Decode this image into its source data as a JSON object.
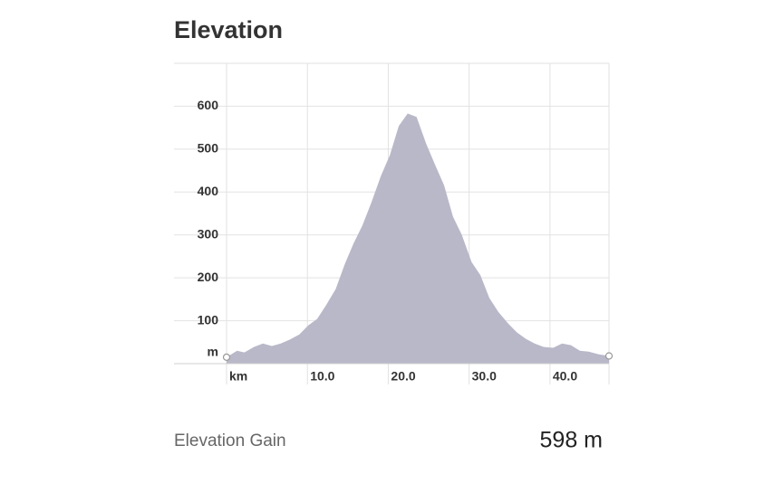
{
  "chart_data": {
    "type": "area",
    "title": "Elevation",
    "xlabel": "km",
    "ylabel": "m",
    "x": [
      0,
      0.6,
      1.3,
      2.2,
      3.4,
      4.5,
      5.6,
      6.7,
      7.8,
      9.0,
      10.1,
      11.2,
      12.3,
      13.5,
      14.6,
      15.7,
      16.8,
      17.9,
      19.1,
      20.2,
      21.3,
      22.4,
      23.5,
      24.7,
      25.8,
      26.9,
      28.0,
      29.1,
      30.3,
      31.4,
      32.5,
      33.6,
      34.8,
      35.9,
      37.0,
      38.1,
      39.2,
      40.4,
      41.5,
      42.6,
      43.7,
      44.8,
      46.0,
      47.3
    ],
    "values": [
      15,
      22,
      30,
      26,
      39,
      47,
      41,
      47,
      56,
      68,
      89,
      104,
      136,
      174,
      231,
      280,
      322,
      375,
      438,
      486,
      554,
      583,
      575,
      512,
      463,
      416,
      343,
      300,
      237,
      206,
      153,
      121,
      94,
      73,
      58,
      47,
      39,
      37,
      47,
      43,
      30,
      28,
      22,
      18
    ],
    "color": "#b9b8c9",
    "xlim": [
      0,
      47.3
    ],
    "xticks": [
      {
        "value": 10,
        "label": "10.0"
      },
      {
        "value": 20,
        "label": "20.0"
      },
      {
        "value": 30,
        "label": "30.0"
      },
      {
        "value": 40,
        "label": "40.0"
      }
    ],
    "ylim": [
      0,
      700
    ],
    "yticks": [
      100,
      200,
      300,
      400,
      500,
      600
    ],
    "grid": true
  },
  "stats": {
    "label": "Elevation Gain",
    "value": "598 m"
  }
}
